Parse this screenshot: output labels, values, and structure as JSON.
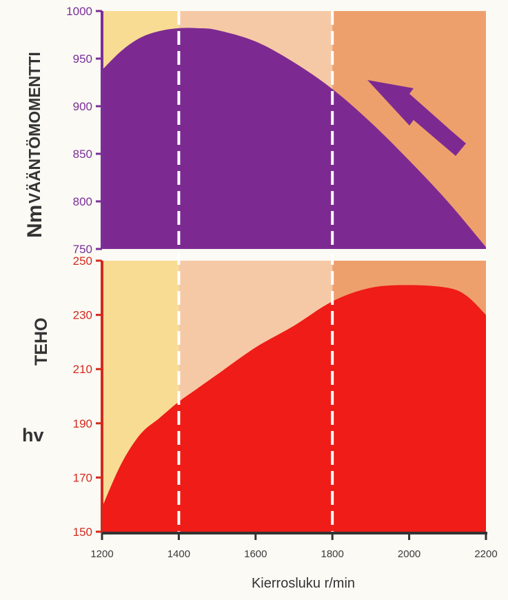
{
  "chart_data": [
    {
      "type": "area",
      "ylabel": "VÄÄNTÖMOMENTTI",
      "unit": "Nm",
      "ylim": [
        750,
        1000
      ],
      "yticks": [
        750,
        800,
        850,
        900,
        950,
        1000
      ],
      "x": [
        1200,
        1250,
        1300,
        1350,
        1400,
        1450,
        1500,
        1600,
        1700,
        1800,
        1900,
        2000,
        2100,
        2200
      ],
      "y": [
        938,
        958,
        972,
        979,
        982,
        982,
        980,
        968,
        946,
        918,
        883,
        843,
        800,
        752
      ],
      "color": "#7c2a92"
    },
    {
      "type": "area",
      "ylabel": "TEHO",
      "unit": "hv",
      "ylim": [
        150,
        250
      ],
      "yticks": [
        150,
        170,
        190,
        210,
        230,
        250
      ],
      "x": [
        1200,
        1250,
        1300,
        1350,
        1400,
        1450,
        1500,
        1600,
        1700,
        1800,
        1900,
        2000,
        2100,
        2150,
        2200
      ],
      "y": [
        159,
        175,
        186,
        192,
        198,
        203,
        208,
        218,
        226,
        235,
        240,
        241,
        240,
        237,
        230
      ],
      "color": "#ef1c17"
    }
  ],
  "x_axis": {
    "label": "Kierrosluku r/min",
    "xlim": [
      1200,
      2200
    ],
    "ticks": [
      "1200",
      "1400",
      "1600",
      "1800",
      "2000",
      "2200"
    ]
  },
  "zones": [
    {
      "from": 1200,
      "to": 1400,
      "color": "#f8dc93"
    },
    {
      "from": 1400,
      "to": 1800,
      "color": "#f6c9a6"
    },
    {
      "from": 1800,
      "to": 2200,
      "color": "#eea06c"
    }
  ],
  "dashed_lines_at": [
    1400,
    1800
  ],
  "colors": {
    "torque": "#7c2a92",
    "power": "#ef1c17",
    "torque_axis": "#7a2e98",
    "power_axis": "#d32a1c",
    "arrow": "#7c2a92",
    "x_axis": "#333333"
  }
}
